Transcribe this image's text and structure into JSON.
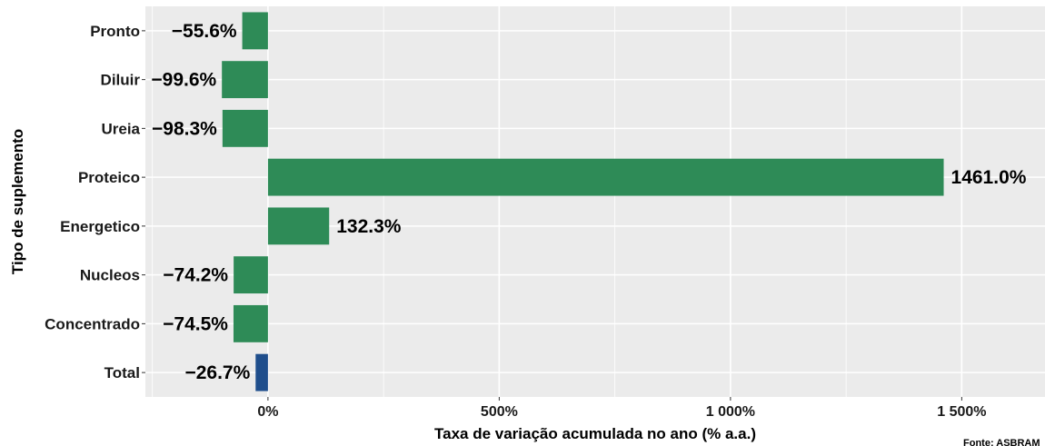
{
  "chart_data": {
    "type": "bar",
    "orientation": "horizontal",
    "xlabel": "Taxa de variação acumulada no ano (% a.a.)",
    "ylabel": "Tipo de suplemento",
    "xlim": [
      -265,
      1680
    ],
    "x_ticks": [
      0,
      500,
      1000,
      1500
    ],
    "x_tick_labels": [
      "0%",
      "500%",
      "1 000%",
      "1 500%"
    ],
    "grid": true,
    "categories": [
      "Pronto",
      "Diluir",
      "Ureia",
      "Proteico",
      "Energetico",
      "Nucleos",
      "Concentrado",
      "Total"
    ],
    "values": [
      -55.6,
      -99.6,
      -98.3,
      1461.0,
      132.3,
      -74.2,
      -74.5,
      -26.7
    ],
    "labels": [
      "−55.6%",
      "−99.6%",
      "−98.3%",
      "1461.0%",
      "132.3%",
      "−74.2%",
      "−74.5%",
      "−26.7%"
    ],
    "colors": [
      "#2e8b57",
      "#2e8b57",
      "#2e8b57",
      "#2e8b57",
      "#2e8b57",
      "#2e8b57",
      "#2e8b57",
      "#1f4e8c"
    ],
    "panel_color": "#ebebeb",
    "caption": "Fonte: ASBRAM"
  }
}
